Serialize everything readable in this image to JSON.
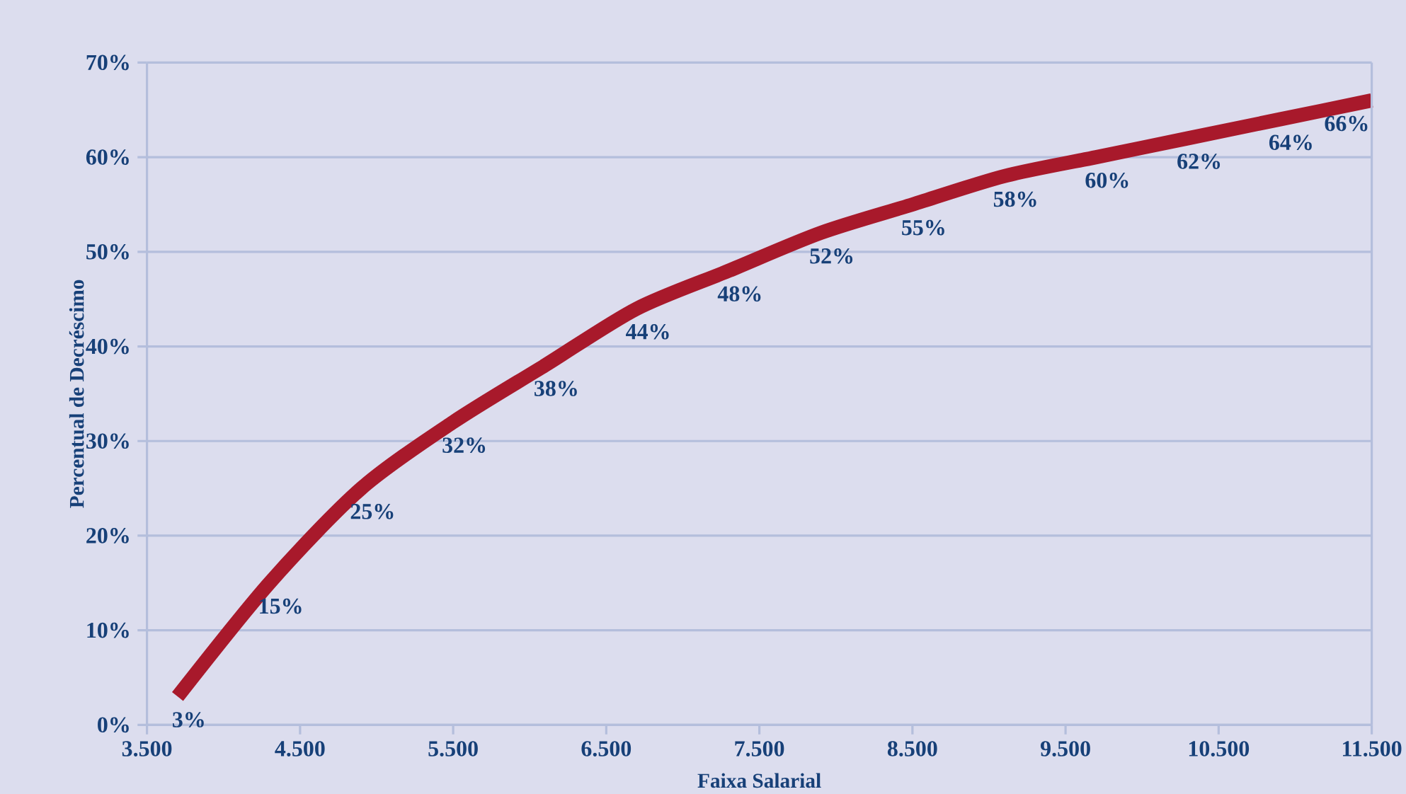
{
  "chart_data": {
    "type": "line",
    "xlabel": "Faixa Salarial",
    "ylabel": "Percentual de Decréscimo",
    "x": [
      3700,
      4300,
      4900,
      5500,
      6100,
      6700,
      7300,
      7900,
      8500,
      9100,
      9700,
      10300,
      10900,
      11500
    ],
    "series": [
      {
        "color": "#a8192b",
        "values": [
          3,
          15,
          25,
          32,
          38,
          44,
          48,
          52,
          55,
          58,
          60,
          62,
          64,
          66
        ],
        "value_labels": [
          "3%",
          "15%",
          "25%",
          "32%",
          "38%",
          "44%",
          "48%",
          "52%",
          "55%",
          "58%",
          "60%",
          "62%",
          "64%",
          "66%"
        ]
      }
    ],
    "xlim": [
      3500,
      11500
    ],
    "ylim": [
      0,
      70
    ],
    "xticks": [
      {
        "value": 3500,
        "label": "3.500"
      },
      {
        "value": 4500,
        "label": "4.500"
      },
      {
        "value": 5500,
        "label": "5.500"
      },
      {
        "value": 6500,
        "label": "6.500"
      },
      {
        "value": 7500,
        "label": "7.500"
      },
      {
        "value": 8500,
        "label": "8.500"
      },
      {
        "value": 9500,
        "label": "9.500"
      },
      {
        "value": 10500,
        "label": "10.500"
      },
      {
        "value": 11500,
        "label": "11.500"
      }
    ],
    "yticks": [
      {
        "value": 0,
        "label": "0%"
      },
      {
        "value": 10,
        "label": "10%"
      },
      {
        "value": 20,
        "label": "20%"
      },
      {
        "value": 30,
        "label": "30%"
      },
      {
        "value": 40,
        "label": "40%"
      },
      {
        "value": 50,
        "label": "50%"
      },
      {
        "value": 60,
        "label": "60%"
      },
      {
        "value": 70,
        "label": "70%"
      }
    ],
    "grid": "y",
    "marker": "none",
    "line_style": "solid"
  }
}
